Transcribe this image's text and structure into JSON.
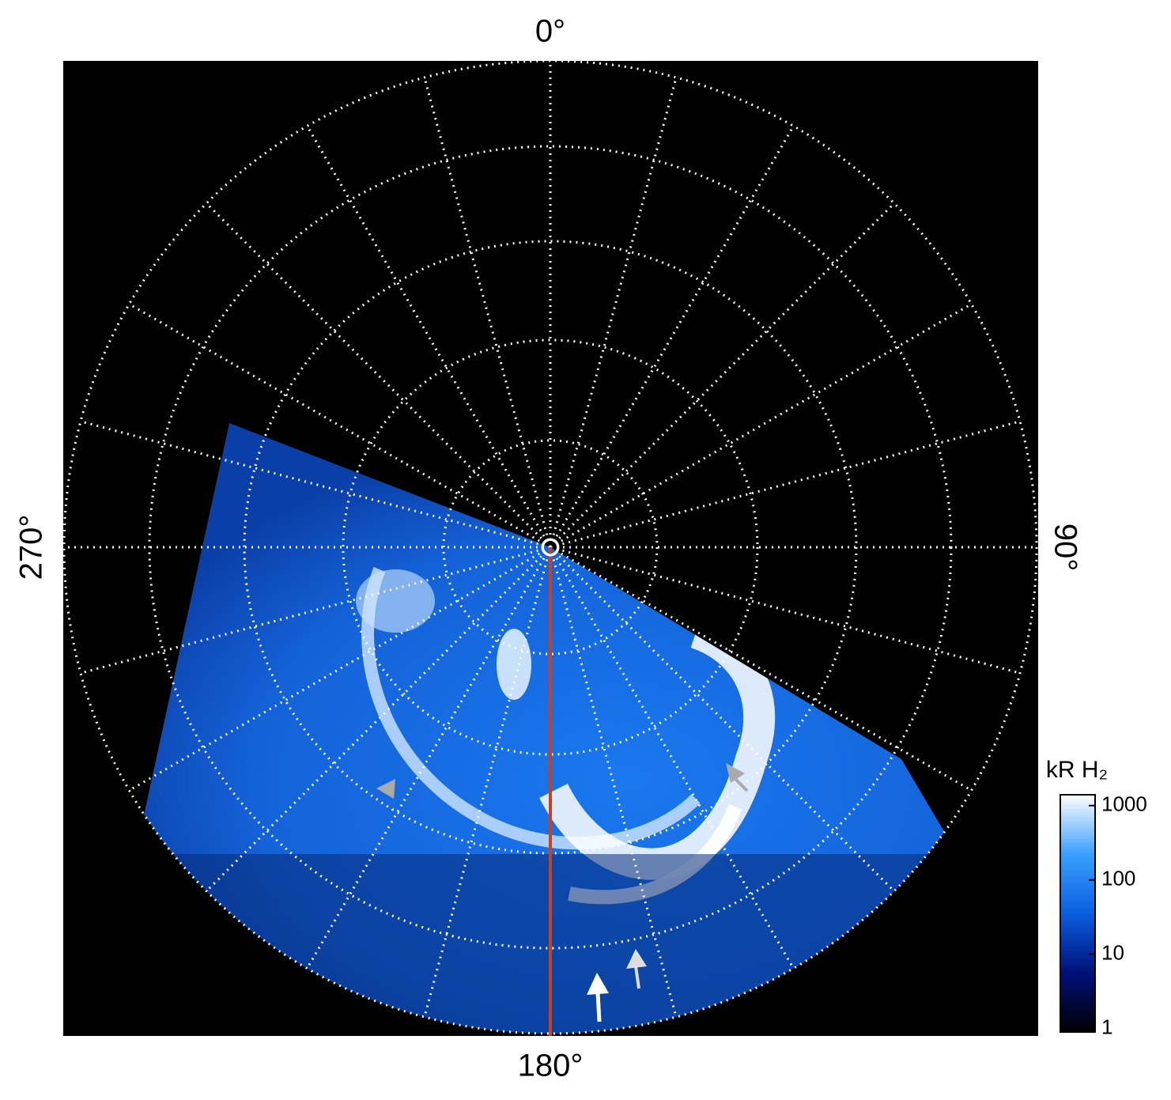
{
  "chart_data": {
    "type": "polar-image",
    "angle_labels": [
      "0°",
      "90°",
      "180°",
      "270°"
    ],
    "colorbar": {
      "label": "kR H₂",
      "scale": "log",
      "lim": [
        0.9,
        1400
      ],
      "ticks": [
        1,
        10,
        100,
        1000
      ],
      "colors": [
        "#000000",
        "#00107a",
        "#0a5ee0",
        "#3aa0ff",
        "#ffffff"
      ]
    }
  }
}
